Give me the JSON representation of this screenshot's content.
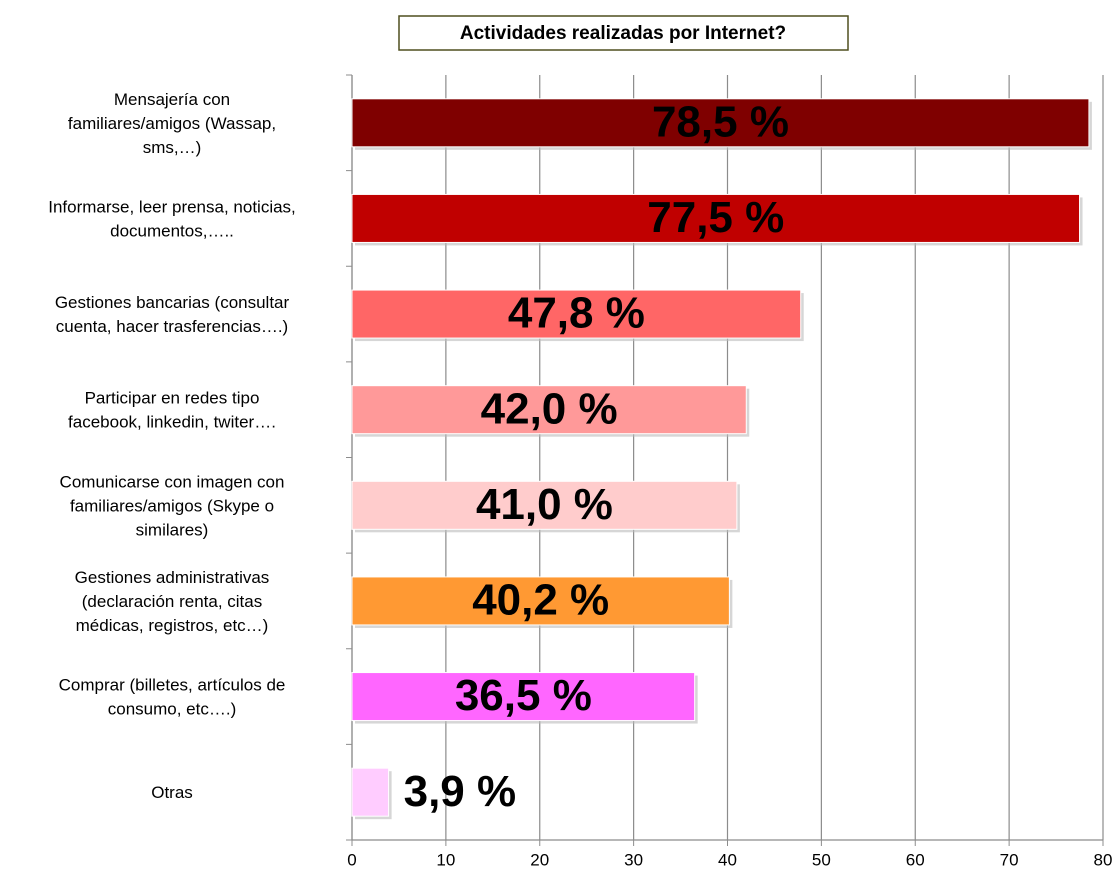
{
  "chart_data": {
    "type": "barh",
    "title": "Actividades realizadas por Internet?",
    "categories": [
      "Mensajería con\nfamiliares/amigos (Wassap,\nsms,…)",
      "Informarse, leer prensa, noticias,\ndocumentos,…..",
      "Gestiones bancarias (consultar\ncuenta, hacer  trasferencias….)",
      "Participar en redes tipo\nfacebook, linkedin,  twiter….",
      "Comunicarse con imagen con\nfamiliares/amigos  (Skype o\nsimilares)",
      "Gestiones administrativas\n(declaración renta,  citas\nmédicas, registros, etc…)",
      "Comprar (billetes, artículos de\nconsumo, etc….)",
      "Otras"
    ],
    "values": [
      78.5,
      77.5,
      47.8,
      42.0,
      41.0,
      40.2,
      36.5,
      3.9
    ],
    "value_labels": [
      "78,5 %",
      "77,5 %",
      "47,8 %",
      "42,0 %",
      "41,0 %",
      "40,2 %",
      "36,5 %",
      "3,9 %"
    ],
    "colors": [
      "#7f0000",
      "#c00000",
      "#ff6666",
      "#ff9999",
      "#ffcccc",
      "#ff9933",
      "#ff66ff",
      "#ffccff"
    ],
    "value_label_colors": [
      "#ffffff",
      "#ffffff",
      "#ffffff",
      "#000000",
      "#000000",
      "#000000",
      "#000000",
      "#000000"
    ],
    "xlim": [
      0,
      80
    ],
    "xticks": [
      0,
      10,
      20,
      30,
      40,
      50,
      60,
      70,
      80
    ],
    "grid": true
  }
}
